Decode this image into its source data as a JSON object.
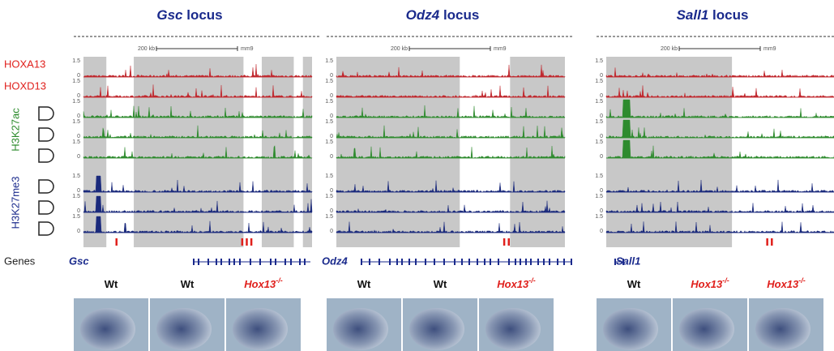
{
  "row_labels": {
    "hoxa13": "HOXA13",
    "hoxd13": "HOXD13",
    "h3k27ac": "H3K27ac",
    "h3k27me3": "H3K27me3",
    "genes": "Genes"
  },
  "axis_ticks": {
    "high": "1.5",
    "low": "0"
  },
  "scale": {
    "length": "200 kb",
    "assembly": "mm9"
  },
  "panels": [
    {
      "title_gene": "Gsc",
      "title_suffix": "locus",
      "gene_label": "Gsc",
      "genotypes": [
        {
          "label": "Wt"
        },
        {
          "label": "Wt"
        },
        {
          "label": "Hox13",
          "sup": "-/-"
        }
      ]
    },
    {
      "title_gene": "Odz4",
      "title_suffix": "locus",
      "gene_label": "Odz4",
      "genotypes": [
        {
          "label": "Wt"
        },
        {
          "label": "Wt"
        },
        {
          "label": "Hox13",
          "sup": "-/-"
        }
      ]
    },
    {
      "title_gene": "Sall1",
      "title_suffix": "locus",
      "gene_label": "Sall1",
      "genotypes": [
        {
          "label": "Wt"
        },
        {
          "label": "Hox13",
          "sup": "-/-"
        },
        {
          "label": "Hox13",
          "sup": "-/-"
        }
      ]
    }
  ]
}
